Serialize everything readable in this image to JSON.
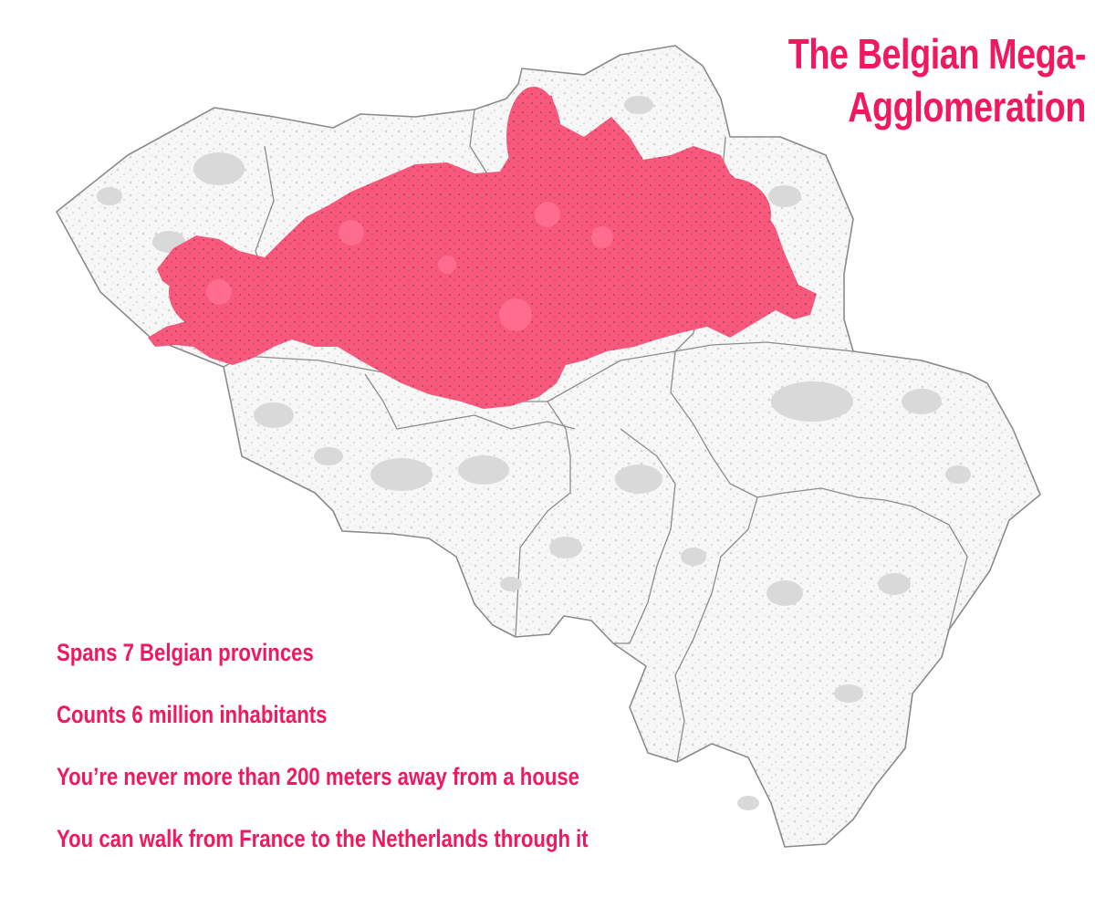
{
  "title": {
    "line1": "The Belgian Mega-",
    "line2": "Agglomeration"
  },
  "facts": [
    "Spans 7 Belgian provinces",
    "Counts 6 million inhabitants",
    "You’re never more than 200 meters away from a house",
    "You can walk from France to the Netherlands through it"
  ],
  "colors": {
    "accent": "#f0195e",
    "agglomeration": "#f7587c",
    "settlement": "#d9d9d9",
    "border": "#8a8a8a",
    "background": "#ffffff"
  },
  "map": {
    "country": "Belgium",
    "highlighted_region": "agglomeration"
  }
}
